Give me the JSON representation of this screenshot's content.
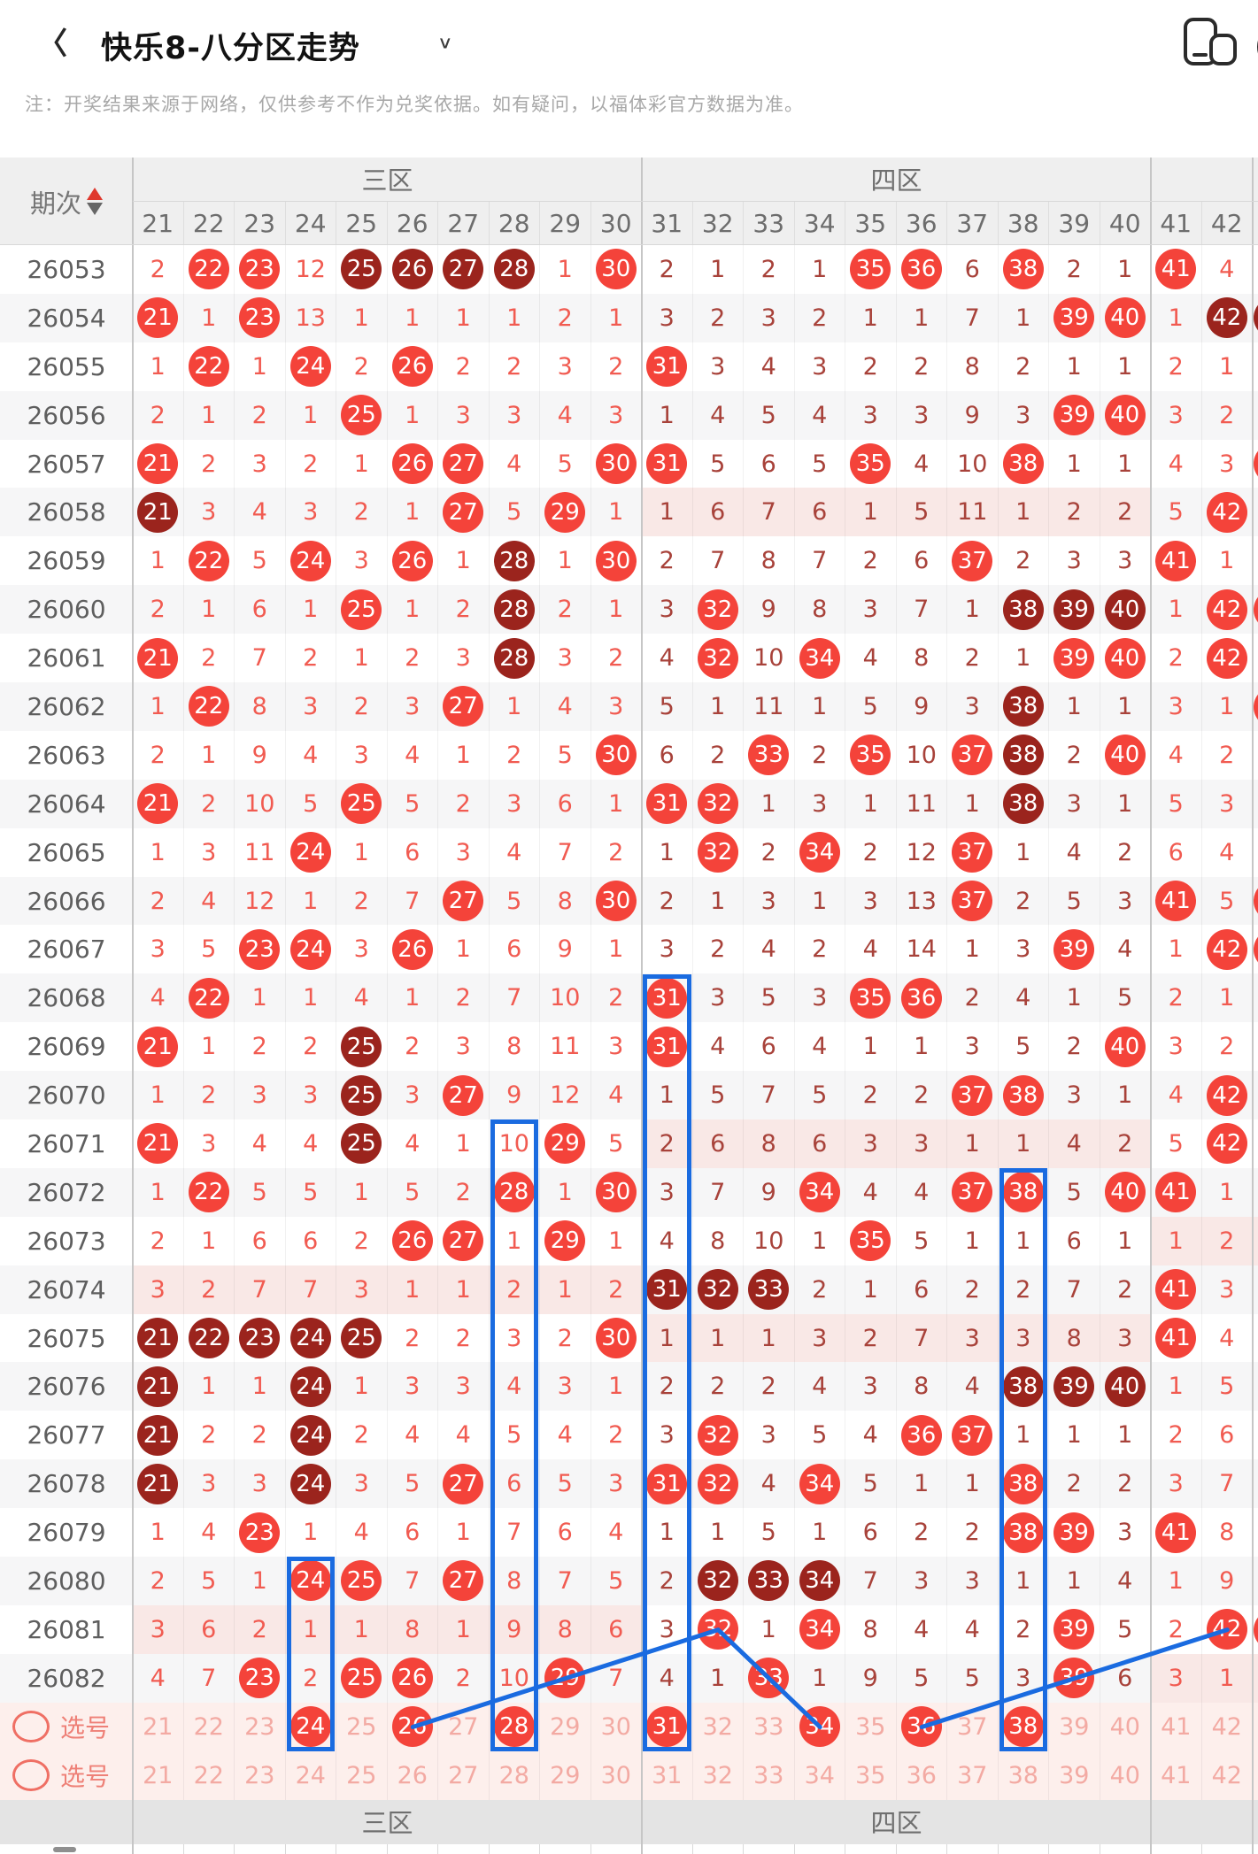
{
  "topbar": {
    "title": "快乐8-八分区走势",
    "back_icon": "chevron-left",
    "dropdown_icon": "chevron-down",
    "window_icon": "floating-window",
    "more_icon": "circle-partial"
  },
  "note": "注：开奖结果来源于网络，仅供参考不作为兑奖依据。如有疑问，以福体彩官方数据为准。",
  "colors": {
    "hot_ball": "#f4433a",
    "streak_ball": "#9b241d",
    "miss_zone_a": "#f15b51",
    "miss_zone_b": "#a8423a",
    "band_pink": "#f9e8e6",
    "pick_row_bg": "#fdefec",
    "annotation_blue": "#1a6be0"
  },
  "table": {
    "period_label": "期次",
    "zones": [
      {
        "label": "三区"
      },
      {
        "label": "四区"
      },
      {
        "label": ""
      }
    ],
    "columns": [
      21,
      22,
      23,
      24,
      25,
      26,
      27,
      28,
      29,
      30,
      31,
      32,
      33,
      34,
      35,
      36,
      37,
      38,
      39,
      40,
      41,
      42
    ],
    "rows": [
      {
        "p": "26053",
        "c": [
          "2",
          "C",
          "C",
          "12",
          "D",
          "D",
          "D",
          "D",
          "1",
          "C",
          "2",
          "1",
          "2",
          "1",
          "C",
          "C",
          "6",
          "C",
          "2",
          "1",
          "C",
          "4"
        ]
      },
      {
        "p": "26054",
        "c": [
          "C",
          "1",
          "C",
          "13",
          "1",
          "1",
          "1",
          "1",
          "2",
          "1",
          "3",
          "2",
          "3",
          "2",
          "1",
          "1",
          "7",
          "1",
          "C",
          "C",
          "1",
          "D"
        ]
      },
      {
        "p": "26055",
        "c": [
          "1",
          "C",
          "1",
          "C",
          "2",
          "C",
          "2",
          "2",
          "3",
          "2",
          "C",
          "3",
          "4",
          "3",
          "2",
          "2",
          "8",
          "2",
          "1",
          "1",
          "2",
          "1"
        ]
      },
      {
        "p": "26056",
        "c": [
          "2",
          "1",
          "2",
          "1",
          "C",
          "1",
          "3",
          "3",
          "4",
          "3",
          "1",
          "4",
          "5",
          "4",
          "3",
          "3",
          "9",
          "3",
          "C",
          "C",
          "3",
          "2"
        ]
      },
      {
        "p": "26057",
        "c": [
          "C",
          "2",
          "3",
          "2",
          "1",
          "C",
          "C",
          "4",
          "5",
          "C",
          "C",
          "5",
          "6",
          "5",
          "C",
          "4",
          "10",
          "C",
          "1",
          "1",
          "4",
          "3"
        ]
      },
      {
        "p": "26058",
        "c": [
          "D",
          "3",
          "4",
          "3",
          "2",
          "1",
          "C",
          "5",
          "C",
          "1",
          "1",
          "6",
          "7",
          "6",
          "1",
          "5",
          "11",
          "1",
          "2",
          "2",
          "5",
          "C"
        ],
        "b": "z2"
      },
      {
        "p": "26059",
        "c": [
          "1",
          "C",
          "5",
          "C",
          "3",
          "C",
          "1",
          "D",
          "1",
          "C",
          "2",
          "7",
          "8",
          "7",
          "2",
          "6",
          "C",
          "2",
          "3",
          "3",
          "C",
          "1"
        ]
      },
      {
        "p": "26060",
        "c": [
          "2",
          "1",
          "6",
          "1",
          "C",
          "1",
          "2",
          "D",
          "2",
          "1",
          "3",
          "C",
          "9",
          "8",
          "3",
          "7",
          "1",
          "D",
          "D",
          "D",
          "1",
          "C"
        ]
      },
      {
        "p": "26061",
        "c": [
          "C",
          "2",
          "7",
          "2",
          "1",
          "2",
          "3",
          "D",
          "3",
          "2",
          "4",
          "C",
          "10",
          "C",
          "4",
          "8",
          "2",
          "1",
          "C",
          "C",
          "2",
          "C"
        ]
      },
      {
        "p": "26062",
        "c": [
          "1",
          "C",
          "8",
          "3",
          "2",
          "3",
          "C",
          "1",
          "4",
          "3",
          "5",
          "1",
          "11",
          "1",
          "5",
          "9",
          "3",
          "D",
          "1",
          "1",
          "3",
          "1"
        ]
      },
      {
        "p": "26063",
        "c": [
          "2",
          "1",
          "9",
          "4",
          "3",
          "4",
          "1",
          "2",
          "5",
          "C",
          "6",
          "2",
          "C",
          "2",
          "C",
          "10",
          "C",
          "D",
          "2",
          "C",
          "4",
          "2"
        ]
      },
      {
        "p": "26064",
        "c": [
          "C",
          "2",
          "10",
          "5",
          "C",
          "5",
          "2",
          "3",
          "6",
          "1",
          "C",
          "C",
          "1",
          "3",
          "1",
          "11",
          "1",
          "D",
          "3",
          "1",
          "5",
          "3"
        ]
      },
      {
        "p": "26065",
        "c": [
          "1",
          "3",
          "11",
          "C",
          "1",
          "6",
          "3",
          "4",
          "7",
          "2",
          "1",
          "C",
          "2",
          "C",
          "2",
          "12",
          "C",
          "1",
          "4",
          "2",
          "6",
          "4"
        ]
      },
      {
        "p": "26066",
        "c": [
          "2",
          "4",
          "12",
          "1",
          "2",
          "7",
          "C",
          "5",
          "8",
          "C",
          "2",
          "1",
          "3",
          "1",
          "3",
          "13",
          "C",
          "2",
          "5",
          "3",
          "C",
          "5"
        ]
      },
      {
        "p": "26067",
        "c": [
          "3",
          "5",
          "C",
          "C",
          "3",
          "C",
          "1",
          "6",
          "9",
          "1",
          "3",
          "2",
          "4",
          "2",
          "4",
          "14",
          "1",
          "3",
          "C",
          "4",
          "1",
          "C"
        ]
      },
      {
        "p": "26068",
        "c": [
          "4",
          "C",
          "1",
          "1",
          "4",
          "1",
          "2",
          "7",
          "10",
          "2",
          "C",
          "3",
          "5",
          "3",
          "C",
          "C",
          "2",
          "4",
          "1",
          "5",
          "2",
          "1"
        ]
      },
      {
        "p": "26069",
        "c": [
          "C",
          "1",
          "2",
          "2",
          "D",
          "2",
          "3",
          "8",
          "11",
          "3",
          "C",
          "4",
          "6",
          "4",
          "1",
          "1",
          "3",
          "5",
          "2",
          "C",
          "3",
          "2"
        ]
      },
      {
        "p": "26070",
        "c": [
          "1",
          "2",
          "3",
          "3",
          "D",
          "3",
          "C",
          "9",
          "12",
          "4",
          "1",
          "5",
          "7",
          "5",
          "2",
          "2",
          "C",
          "C",
          "3",
          "1",
          "4",
          "C"
        ]
      },
      {
        "p": "26071",
        "c": [
          "C",
          "3",
          "4",
          "4",
          "D",
          "4",
          "1",
          "10",
          "C",
          "5",
          "2",
          "6",
          "8",
          "6",
          "3",
          "3",
          "1",
          "1",
          "4",
          "2",
          "5",
          "C"
        ],
        "b": "z2"
      },
      {
        "p": "26072",
        "c": [
          "1",
          "C",
          "5",
          "5",
          "1",
          "5",
          "2",
          "C",
          "1",
          "C",
          "3",
          "7",
          "9",
          "C",
          "4",
          "4",
          "C",
          "C",
          "5",
          "C",
          "C",
          "1"
        ]
      },
      {
        "p": "26073",
        "c": [
          "2",
          "1",
          "6",
          "6",
          "2",
          "C",
          "C",
          "1",
          "C",
          "1",
          "4",
          "8",
          "10",
          "1",
          "C",
          "5",
          "1",
          "1",
          "6",
          "1",
          "1",
          "2"
        ],
        "b": "z3"
      },
      {
        "p": "26074",
        "c": [
          "3",
          "2",
          "7",
          "7",
          "3",
          "1",
          "1",
          "2",
          "1",
          "2",
          "D",
          "D",
          "D",
          "2",
          "1",
          "6",
          "2",
          "2",
          "7",
          "2",
          "C",
          "3"
        ],
        "b": "z1"
      },
      {
        "p": "26075",
        "c": [
          "D",
          "D",
          "D",
          "D",
          "D",
          "2",
          "2",
          "3",
          "2",
          "C",
          "1",
          "1",
          "1",
          "3",
          "2",
          "7",
          "3",
          "3",
          "8",
          "3",
          "C",
          "4"
        ],
        "b": "z2"
      },
      {
        "p": "26076",
        "c": [
          "D",
          "1",
          "1",
          "D",
          "1",
          "3",
          "3",
          "4",
          "3",
          "1",
          "2",
          "2",
          "2",
          "4",
          "3",
          "8",
          "4",
          "D",
          "D",
          "D",
          "1",
          "5"
        ]
      },
      {
        "p": "26077",
        "c": [
          "D",
          "2",
          "2",
          "D",
          "2",
          "4",
          "4",
          "5",
          "4",
          "2",
          "3",
          "C",
          "3",
          "5",
          "4",
          "C",
          "C",
          "1",
          "1",
          "1",
          "2",
          "6"
        ]
      },
      {
        "p": "26078",
        "c": [
          "D",
          "3",
          "3",
          "D",
          "3",
          "5",
          "C",
          "6",
          "5",
          "3",
          "C",
          "C",
          "4",
          "C",
          "5",
          "1",
          "1",
          "C",
          "2",
          "2",
          "3",
          "7"
        ]
      },
      {
        "p": "26079",
        "c": [
          "1",
          "4",
          "C",
          "1",
          "4",
          "6",
          "1",
          "7",
          "6",
          "4",
          "1",
          "1",
          "5",
          "1",
          "6",
          "2",
          "2",
          "C",
          "C",
          "3",
          "C",
          "8"
        ]
      },
      {
        "p": "26080",
        "c": [
          "2",
          "5",
          "1",
          "C",
          "C",
          "7",
          "C",
          "8",
          "7",
          "5",
          "2",
          "D",
          "D",
          "D",
          "7",
          "3",
          "3",
          "1",
          "1",
          "4",
          "1",
          "9"
        ]
      },
      {
        "p": "26081",
        "c": [
          "3",
          "6",
          "2",
          "1",
          "1",
          "8",
          "1",
          "9",
          "8",
          "6",
          "3",
          "C",
          "1",
          "C",
          "8",
          "4",
          "4",
          "2",
          "C",
          "5",
          "2",
          "C"
        ],
        "b": "z1"
      },
      {
        "p": "26082",
        "c": [
          "4",
          "7",
          "C",
          "2",
          "C",
          "C",
          "2",
          "10",
          "C",
          "7",
          "4",
          "1",
          "C",
          "1",
          "9",
          "5",
          "5",
          "3",
          "C",
          "6",
          "3",
          "1"
        ],
        "b": "z3"
      }
    ],
    "picks": [
      {
        "label": "选号",
        "icon": "pick-ring",
        "selected": [
          24,
          26,
          28,
          31,
          34,
          36,
          38
        ]
      },
      {
        "label": "选号",
        "icon": "pick-ring",
        "selected": []
      }
    ],
    "footer": [
      {
        "label": "三区"
      },
      {
        "label": "四区"
      },
      {
        "label": ""
      }
    ]
  },
  "annotations": {
    "rects": [
      {
        "column": 24,
        "from_period": "26080"
      },
      {
        "column": 28,
        "from_period": "26071"
      },
      {
        "column": 31,
        "from_period": "26068"
      },
      {
        "column": 38,
        "from_period": "26072"
      }
    ],
    "polylines": [
      [
        {
          "row": "pick1",
          "col": 26
        },
        {
          "row": "26081",
          "col": 32
        },
        {
          "row": "pick1",
          "col": 34
        }
      ],
      [
        {
          "row": "pick1",
          "col": 36
        },
        {
          "row": "26081",
          "col": 42
        }
      ]
    ],
    "edge_partials": [
      {
        "period": "26054",
        "style": "D"
      },
      {
        "period": "26057",
        "style": "C"
      },
      {
        "period": "26060",
        "style": "C"
      },
      {
        "period": "26062",
        "style": "C"
      },
      {
        "period": "26066",
        "style": "C"
      },
      {
        "period": "26067",
        "style": "C"
      },
      {
        "period": "26081",
        "style": "C"
      }
    ]
  }
}
